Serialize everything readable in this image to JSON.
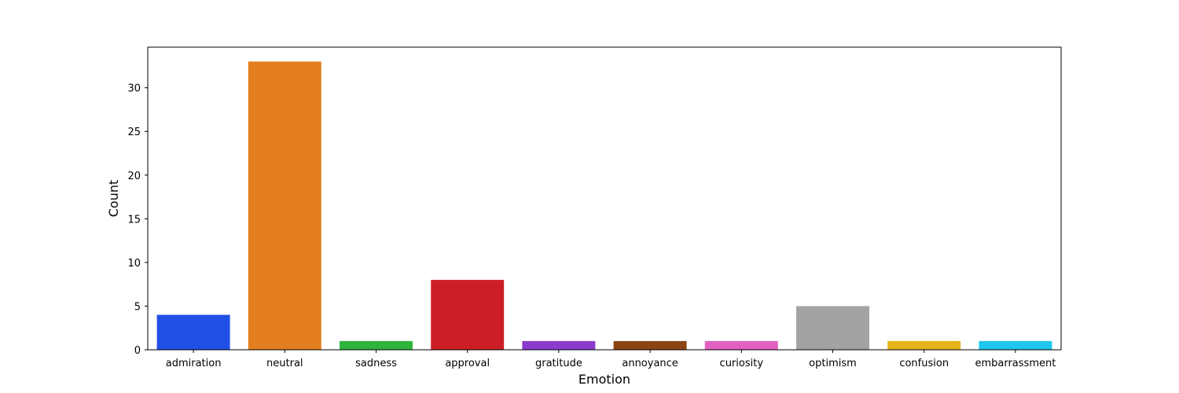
{
  "chart_data": {
    "type": "bar",
    "title": "",
    "xlabel": "Emotion",
    "ylabel": "Count",
    "categories": [
      "admiration",
      "neutral",
      "sadness",
      "approval",
      "gratitude",
      "annoyance",
      "curiosity",
      "optimism",
      "confusion",
      "embarrassment"
    ],
    "values": [
      4,
      33,
      1,
      8,
      1,
      1,
      1,
      5,
      1,
      1
    ],
    "colors": [
      "#2150e6",
      "#e37f1f",
      "#2eb33b",
      "#cc1e26",
      "#8b3ccc",
      "#8b4513",
      "#e060c0",
      "#a3a3a3",
      "#e6b31a",
      "#1ec6eb"
    ],
    "ylim": [
      0,
      34.65
    ],
    "yticks": [
      0,
      5,
      10,
      15,
      20,
      25,
      30
    ],
    "grid": false,
    "legend": "none"
  }
}
